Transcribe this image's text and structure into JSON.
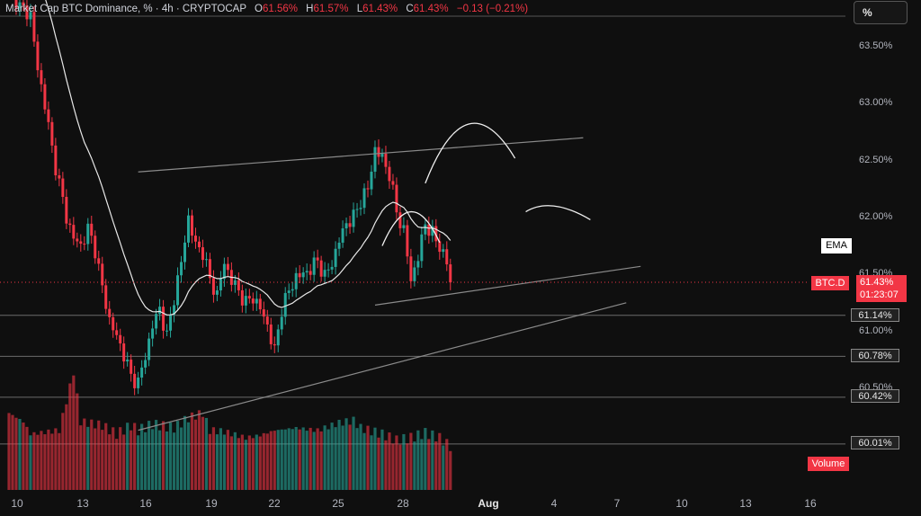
{
  "header": {
    "title": "Market Cap BTC Dominance, % · 4h · CRYPTOCAP",
    "o_label": "O",
    "o_value": "61.56%",
    "h_label": "H",
    "h_value": "61.57%",
    "l_label": "L",
    "l_value": "61.43%",
    "c_label": "C",
    "c_value": "61.43%",
    "change": "−0.13 (−0.21%)"
  },
  "scale_button": "%",
  "price_axis": {
    "ticks": [
      {
        "label": "63.50%",
        "value": 63.5
      },
      {
        "label": "63.00%",
        "value": 63.0
      },
      {
        "label": "62.50%",
        "value": 62.5
      },
      {
        "label": "62.00%",
        "value": 62.0
      },
      {
        "label": "61.50%",
        "value": 61.5
      },
      {
        "label": "61.00%",
        "value": 61.0
      },
      {
        "label": "60.50%",
        "value": 60.5
      }
    ],
    "horizontal_levels": [
      {
        "label": "61.14%",
        "value": 61.14
      },
      {
        "label": "60.78%",
        "value": 60.78
      },
      {
        "label": "60.42%",
        "value": 60.42
      },
      {
        "label": "60.01%",
        "value": 60.01
      }
    ]
  },
  "ema_label": "EMA",
  "symbol_tag": "BTC.D",
  "last_price": "61.43%",
  "countdown": "01:23:07",
  "volume_tag": "Volume",
  "colors": {
    "up": "#26a69a",
    "down": "#f23645",
    "background": "#0f0f0f"
  },
  "chart_data": {
    "type": "candlestick",
    "symbol": "BTC.D",
    "timeframe": "4h",
    "x_ticks": [
      {
        "label": "10",
        "bar": 1
      },
      {
        "label": "13",
        "bar": 19
      },
      {
        "label": "16",
        "bar": 37
      },
      {
        "label": "19",
        "bar": 55
      },
      {
        "label": "22",
        "bar": 73
      },
      {
        "label": "25",
        "bar": 91
      },
      {
        "label": "28",
        "bar": 109
      },
      {
        "label": "Aug",
        "bar": 130
      },
      {
        "label": "4",
        "bar": 148
      },
      {
        "label": "7",
        "bar": 166
      },
      {
        "label": "10",
        "bar": 184
      },
      {
        "label": "13",
        "bar": 202
      },
      {
        "label": "16",
        "bar": 220
      }
    ],
    "close_anchors": [
      [
        0,
        64.05
      ],
      [
        3,
        63.85
      ],
      [
        6,
        63.78
      ],
      [
        8,
        63.3
      ],
      [
        10,
        63.0
      ],
      [
        12,
        62.6
      ],
      [
        14,
        62.3
      ],
      [
        16,
        62.0
      ],
      [
        18,
        61.82
      ],
      [
        20,
        61.75
      ],
      [
        22,
        61.9
      ],
      [
        24,
        61.72
      ],
      [
        26,
        61.38
      ],
      [
        28,
        61.1
      ],
      [
        30,
        60.95
      ],
      [
        32,
        60.8
      ],
      [
        34,
        60.6
      ],
      [
        36,
        60.55
      ],
      [
        38,
        60.78
      ],
      [
        40,
        61.05
      ],
      [
        42,
        61.2
      ],
      [
        44,
        60.95
      ],
      [
        46,
        61.3
      ],
      [
        48,
        61.6
      ],
      [
        50,
        62.0
      ],
      [
        52,
        61.75
      ],
      [
        54,
        61.7
      ],
      [
        56,
        61.45
      ],
      [
        58,
        61.32
      ],
      [
        60,
        61.6
      ],
      [
        62,
        61.45
      ],
      [
        64,
        61.35
      ],
      [
        66,
        61.25
      ],
      [
        68,
        61.3
      ],
      [
        70,
        61.2
      ],
      [
        72,
        61.05
      ],
      [
        74,
        60.82
      ],
      [
        76,
        61.2
      ],
      [
        78,
        61.35
      ],
      [
        80,
        61.48
      ],
      [
        82,
        61.5
      ],
      [
        84,
        61.55
      ],
      [
        86,
        61.62
      ],
      [
        88,
        61.48
      ],
      [
        90,
        61.6
      ],
      [
        92,
        61.8
      ],
      [
        94,
        61.95
      ],
      [
        96,
        62.0
      ],
      [
        98,
        62.15
      ],
      [
        100,
        62.25
      ],
      [
        102,
        62.6
      ],
      [
        104,
        62.52
      ],
      [
        106,
        62.38
      ],
      [
        108,
        62.05
      ],
      [
        110,
        61.88
      ],
      [
        112,
        61.45
      ],
      [
        114,
        61.65
      ],
      [
        116,
        61.95
      ],
      [
        118,
        61.85
      ],
      [
        120,
        61.75
      ],
      [
        122,
        61.6
      ],
      [
        123,
        61.43
      ]
    ],
    "volume_anchors": [
      [
        0,
        0.62
      ],
      [
        4,
        0.55
      ],
      [
        6,
        0.45
      ],
      [
        14,
        0.48
      ],
      [
        18,
        0.95
      ],
      [
        20,
        0.55
      ],
      [
        26,
        0.52
      ],
      [
        30,
        0.45
      ],
      [
        34,
        0.52
      ],
      [
        36,
        0.48
      ],
      [
        40,
        0.53
      ],
      [
        46,
        0.5
      ],
      [
        50,
        0.58
      ],
      [
        54,
        0.62
      ],
      [
        56,
        0.48
      ],
      [
        60,
        0.47
      ],
      [
        66,
        0.42
      ],
      [
        70,
        0.44
      ],
      [
        74,
        0.48
      ],
      [
        80,
        0.5
      ],
      [
        86,
        0.48
      ],
      [
        90,
        0.52
      ],
      [
        92,
        0.54
      ],
      [
        96,
        0.56
      ],
      [
        98,
        0.5
      ],
      [
        104,
        0.45
      ],
      [
        108,
        0.4
      ],
      [
        112,
        0.42
      ],
      [
        116,
        0.46
      ],
      [
        120,
        0.42
      ],
      [
        123,
        0.35
      ]
    ],
    "trend_lines": [
      {
        "start": {
          "bar": 36,
          "value": 62.4
        },
        "end": {
          "bar": 160,
          "value": 62.7
        }
      },
      {
        "start": {
          "bar": 102,
          "value": 61.23
        },
        "end": {
          "bar": 176,
          "value": 61.57
        }
      },
      {
        "start": {
          "bar": 36,
          "value": 60.13
        },
        "end": {
          "bar": 172,
          "value": 61.25
        }
      }
    ],
    "arcs": [
      {
        "start": {
          "bar": 104,
          "value": 61.75
        },
        "peak": {
          "bar": 112,
          "value": 62.05
        },
        "end": {
          "bar": 120,
          "value": 61.78
        }
      },
      {
        "start": {
          "bar": 116,
          "value": 62.3
        },
        "peak": {
          "bar": 128,
          "value": 62.82
        },
        "end": {
          "bar": 141,
          "value": 62.52
        }
      },
      {
        "start": {
          "bar": 144,
          "value": 62.05
        },
        "peak": {
          "bar": 152,
          "value": 62.1
        },
        "end": {
          "bar": 162,
          "value": 61.98
        }
      }
    ]
  }
}
